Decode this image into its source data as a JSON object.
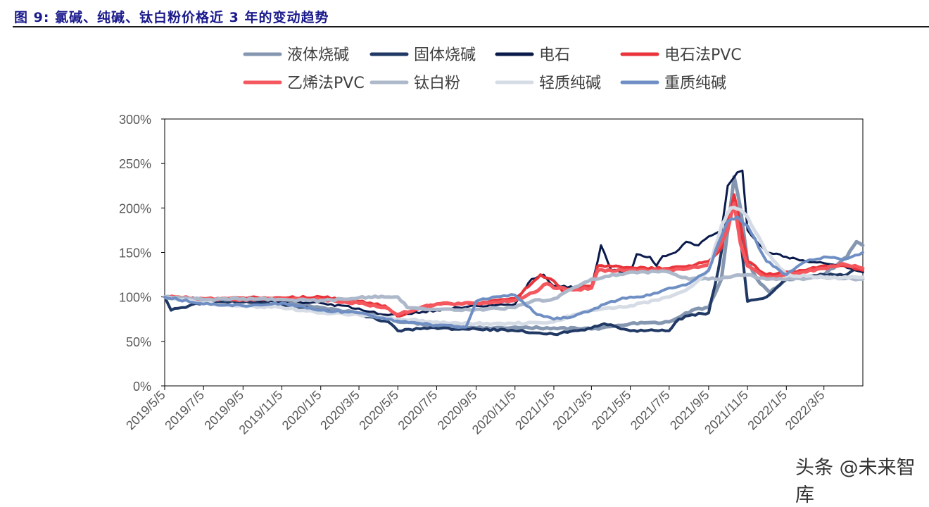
{
  "figure": {
    "title": "图 9: 氯碱、纯碱、钛白粉价格近 3 年的变动趋势",
    "watermark": "头条 @未来智库"
  },
  "chart_data": {
    "type": "line",
    "title": "",
    "xlabel": "",
    "ylabel": "",
    "ylim": [
      0,
      300
    ],
    "y_unit": "%",
    "grid": false,
    "legend_position": "top",
    "yticks": [
      "0%",
      "50%",
      "100%",
      "150%",
      "200%",
      "250%",
      "300%"
    ],
    "x_ticks": [
      "2019/5/5",
      "2019/7/5",
      "2019/9/5",
      "2019/11/5",
      "2020/1/5",
      "2020/3/5",
      "2020/5/5",
      "2020/7/5",
      "2020/9/5",
      "2020/11/5",
      "2021/1/5",
      "2021/3/5",
      "2021/5/5",
      "2021/7/5",
      "2021/9/5",
      "2021/11/5",
      "2022/1/5",
      "2022/3/5"
    ],
    "series": [
      {
        "name": "液体烧碱",
        "color": "#8496b0",
        "width": 5,
        "points": [
          [
            "2019/5/5",
            100
          ],
          [
            "2019/6/1",
            98
          ],
          [
            "2019/7/5",
            95
          ],
          [
            "2019/9/5",
            95
          ],
          [
            "2019/10/20",
            97
          ],
          [
            "2019/11/5",
            96
          ],
          [
            "2020/1/5",
            88
          ],
          [
            "2020/3/5",
            82
          ],
          [
            "2020/4/20",
            78
          ],
          [
            "2020/5/5",
            72
          ],
          [
            "2020/6/10",
            70
          ],
          [
            "2020/7/5",
            68
          ],
          [
            "2020/9/5",
            65
          ],
          [
            "2020/11/5",
            66
          ],
          [
            "2021/1/5",
            65
          ],
          [
            "2021/3/5",
            64
          ],
          [
            "2021/4/20",
            68
          ],
          [
            "2021/5/5",
            70
          ],
          [
            "2021/7/5",
            72
          ],
          [
            "2021/8/10",
            85
          ],
          [
            "2021/9/5",
            88
          ],
          [
            "2021/9/25",
            120
          ],
          [
            "2021/10/5",
            175
          ],
          [
            "2021/10/15",
            235
          ],
          [
            "2021/10/25",
            200
          ],
          [
            "2021/11/5",
            140
          ],
          [
            "2021/11/20",
            120
          ],
          [
            "2021/12/10",
            105
          ],
          [
            "2022/1/5",
            120
          ],
          [
            "2022/3/5",
            125
          ],
          [
            "2022/4/10",
            145
          ],
          [
            "2022/4/25",
            162
          ],
          [
            "2022/5/5",
            158
          ]
        ]
      },
      {
        "name": "固体烧碱",
        "color": "#203864",
        "width": 4,
        "points": [
          [
            "2019/5/5",
            100
          ],
          [
            "2019/5/15",
            85
          ],
          [
            "2019/6/1",
            88
          ],
          [
            "2019/7/5",
            94
          ],
          [
            "2019/9/5",
            94
          ],
          [
            "2019/11/5",
            92
          ],
          [
            "2020/1/5",
            85
          ],
          [
            "2020/3/5",
            80
          ],
          [
            "2020/4/20",
            72
          ],
          [
            "2020/5/5",
            62
          ],
          [
            "2020/6/15",
            65
          ],
          [
            "2020/9/5",
            64
          ],
          [
            "2020/11/5",
            62
          ],
          [
            "2021/1/5",
            58
          ],
          [
            "2021/3/5",
            65
          ],
          [
            "2021/3/25",
            70
          ],
          [
            "2021/4/20",
            64
          ],
          [
            "2021/5/5",
            62
          ],
          [
            "2021/7/5",
            62
          ],
          [
            "2021/7/20",
            75
          ],
          [
            "2021/8/10",
            80
          ],
          [
            "2021/9/5",
            82
          ],
          [
            "2021/9/20",
            130
          ],
          [
            "2021/10/5",
            195
          ],
          [
            "2021/10/20",
            200
          ],
          [
            "2021/11/5",
            95
          ],
          [
            "2021/12/5",
            100
          ],
          [
            "2022/1/5",
            120
          ],
          [
            "2022/3/5",
            125
          ],
          [
            "2022/4/10",
            125
          ],
          [
            "2022/4/25",
            132
          ],
          [
            "2022/5/5",
            128
          ]
        ]
      },
      {
        "name": "电石",
        "color": "#0a1a4a",
        "width": 3,
        "points": [
          [
            "2019/5/5",
            100
          ],
          [
            "2019/7/5",
            98
          ],
          [
            "2019/9/5",
            97
          ],
          [
            "2019/11/5",
            95
          ],
          [
            "2020/1/5",
            93
          ],
          [
            "2020/3/5",
            87
          ],
          [
            "2020/4/15",
            80
          ],
          [
            "2020/5/5",
            80
          ],
          [
            "2020/7/5",
            85
          ],
          [
            "2020/9/5",
            90
          ],
          [
            "2020/11/5",
            92
          ],
          [
            "2020/12/1",
            120
          ],
          [
            "2020/12/20",
            125
          ],
          [
            "2021/1/5",
            112
          ],
          [
            "2021/3/5",
            110
          ],
          [
            "2021/3/20",
            158
          ],
          [
            "2021/4/5",
            130
          ],
          [
            "2021/5/5",
            128
          ],
          [
            "2021/5/15",
            148
          ],
          [
            "2021/6/5",
            145
          ],
          [
            "2021/6/15",
            135
          ],
          [
            "2021/6/25",
            146
          ],
          [
            "2021/7/15",
            150
          ],
          [
            "2021/8/1",
            162
          ],
          [
            "2021/8/20",
            158
          ],
          [
            "2021/9/5",
            168
          ],
          [
            "2021/9/25",
            175
          ],
          [
            "2021/10/5",
            225
          ],
          [
            "2021/10/20",
            240
          ],
          [
            "2021/10/28",
            242
          ],
          [
            "2021/11/5",
            175
          ],
          [
            "2021/12/5",
            150
          ],
          [
            "2022/1/5",
            145
          ],
          [
            "2022/2/5",
            140
          ],
          [
            "2022/3/5",
            138
          ],
          [
            "2022/4/5",
            135
          ],
          [
            "2022/5/5",
            128
          ]
        ]
      },
      {
        "name": "电石法PVC",
        "color": "#e8343a",
        "width": 4,
        "points": [
          [
            "2019/5/5",
            100
          ],
          [
            "2019/7/5",
            98
          ],
          [
            "2019/9/5",
            99
          ],
          [
            "2019/11/5",
            99
          ],
          [
            "2020/1/5",
            100
          ],
          [
            "2020/3/5",
            95
          ],
          [
            "2020/4/15",
            90
          ],
          [
            "2020/5/5",
            78
          ],
          [
            "2020/6/10",
            88
          ],
          [
            "2020/7/5",
            92
          ],
          [
            "2020/9/5",
            93
          ],
          [
            "2020/11/5",
            98
          ],
          [
            "2020/12/1",
            115
          ],
          [
            "2020/12/15",
            125
          ],
          [
            "2021/1/5",
            118
          ],
          [
            "2021/1/20",
            105
          ],
          [
            "2021/2/5",
            110
          ],
          [
            "2021/3/5",
            112
          ],
          [
            "2021/3/15",
            135
          ],
          [
            "2021/5/5",
            133
          ],
          [
            "2021/7/5",
            132
          ],
          [
            "2021/8/5",
            135
          ],
          [
            "2021/9/5",
            140
          ],
          [
            "2021/9/25",
            155
          ],
          [
            "2021/10/5",
            185
          ],
          [
            "2021/10/15",
            215
          ],
          [
            "2021/10/28",
            170
          ],
          [
            "2021/11/5",
            140
          ],
          [
            "2021/12/5",
            125
          ],
          [
            "2022/1/5",
            128
          ],
          [
            "2022/2/5",
            130
          ],
          [
            "2022/3/5",
            135
          ],
          [
            "2022/4/5",
            135
          ],
          [
            "2022/5/5",
            130
          ]
        ]
      },
      {
        "name": "乙烯法PVC",
        "color": "#f4575d",
        "width": 5,
        "points": [
          [
            "2019/5/5",
            100
          ],
          [
            "2019/7/5",
            98
          ],
          [
            "2019/9/5",
            97
          ],
          [
            "2019/11/5",
            98
          ],
          [
            "2020/1/5",
            97
          ],
          [
            "2020/3/5",
            93
          ],
          [
            "2020/4/15",
            88
          ],
          [
            "2020/5/5",
            80
          ],
          [
            "2020/6/10",
            88
          ],
          [
            "2020/7/5",
            92
          ],
          [
            "2020/9/5",
            93
          ],
          [
            "2020/11/5",
            96
          ],
          [
            "2020/12/5",
            105
          ],
          [
            "2020/12/25",
            115
          ],
          [
            "2021/1/5",
            110
          ],
          [
            "2021/2/5",
            108
          ],
          [
            "2021/3/5",
            110
          ],
          [
            "2021/3/15",
            130
          ],
          [
            "2021/5/5",
            130
          ],
          [
            "2021/7/5",
            130
          ],
          [
            "2021/9/5",
            136
          ],
          [
            "2021/10/5",
            175
          ],
          [
            "2021/10/15",
            205
          ],
          [
            "2021/10/25",
            160
          ],
          [
            "2021/11/5",
            135
          ],
          [
            "2021/12/5",
            122
          ],
          [
            "2022/1/5",
            125
          ],
          [
            "2022/3/5",
            132
          ],
          [
            "2022/4/5",
            137
          ],
          [
            "2022/5/5",
            132
          ]
        ]
      },
      {
        "name": "钛白粉",
        "color": "#adb9ca",
        "width": 5,
        "points": [
          [
            "2019/5/5",
            100
          ],
          [
            "2019/7/5",
            97
          ],
          [
            "2019/9/5",
            98
          ],
          [
            "2019/11/5",
            97
          ],
          [
            "2020/1/5",
            96
          ],
          [
            "2020/3/5",
            99
          ],
          [
            "2020/3/20",
            100
          ],
          [
            "2020/4/20",
            100
          ],
          [
            "2020/5/5",
            100
          ],
          [
            "2020/5/20",
            88
          ],
          [
            "2020/7/5",
            86
          ],
          [
            "2020/9/5",
            86
          ],
          [
            "2020/11/5",
            88
          ],
          [
            "2020/12/1",
            95
          ],
          [
            "2021/1/5",
            98
          ],
          [
            "2021/3/5",
            120
          ],
          [
            "2021/5/5",
            128
          ],
          [
            "2021/7/5",
            128
          ],
          [
            "2021/8/5",
            120
          ],
          [
            "2021/9/5",
            120
          ],
          [
            "2021/10/5",
            122
          ],
          [
            "2021/11/5",
            125
          ],
          [
            "2021/12/5",
            120
          ],
          [
            "2022/1/5",
            120
          ],
          [
            "2022/3/5",
            122
          ],
          [
            "2022/5/5",
            120
          ]
        ]
      },
      {
        "name": "轻质纯碱",
        "color": "#d6dce5",
        "width": 5,
        "points": [
          [
            "2019/5/5",
            100
          ],
          [
            "2019/7/5",
            93
          ],
          [
            "2019/9/5",
            90
          ],
          [
            "2019/11/5",
            88
          ],
          [
            "2020/1/5",
            82
          ],
          [
            "2020/3/5",
            80
          ],
          [
            "2020/5/5",
            75
          ],
          [
            "2020/7/5",
            72
          ],
          [
            "2020/9/5",
            70
          ],
          [
            "2020/11/5",
            70
          ],
          [
            "2021/1/5",
            72
          ],
          [
            "2021/2/5",
            80
          ],
          [
            "2021/3/5",
            85
          ],
          [
            "2021/5/5",
            90
          ],
          [
            "2021/7/5",
            100
          ],
          [
            "2021/8/5",
            110
          ],
          [
            "2021/9/5",
            130
          ],
          [
            "2021/9/25",
            180
          ],
          [
            "2021/10/10",
            200
          ],
          [
            "2021/10/25",
            198
          ],
          [
            "2021/11/5",
            190
          ],
          [
            "2021/12/5",
            150
          ],
          [
            "2022/1/5",
            125
          ],
          [
            "2022/3/5",
            122
          ],
          [
            "2022/5/5",
            122
          ]
        ]
      },
      {
        "name": "重质纯碱",
        "color": "#6f8fc4",
        "width": 4,
        "points": [
          [
            "2019/5/5",
            100
          ],
          [
            "2019/7/5",
            92
          ],
          [
            "2019/9/5",
            90
          ],
          [
            "2019/11/5",
            93
          ],
          [
            "2020/1/5",
            85
          ],
          [
            "2020/3/5",
            82
          ],
          [
            "2020/5/5",
            73
          ],
          [
            "2020/7/5",
            68
          ],
          [
            "2020/8/20",
            66
          ],
          [
            "2020/9/5",
            95
          ],
          [
            "2020/10/1",
            100
          ],
          [
            "2020/11/5",
            102
          ],
          [
            "2020/12/10",
            80
          ],
          [
            "2021/1/5",
            75
          ],
          [
            "2021/2/5",
            78
          ],
          [
            "2021/3/5",
            85
          ],
          [
            "2021/4/5",
            95
          ],
          [
            "2021/5/5",
            100
          ],
          [
            "2021/6/5",
            102
          ],
          [
            "2021/7/5",
            110
          ],
          [
            "2021/8/5",
            115
          ],
          [
            "2021/9/5",
            130
          ],
          [
            "2021/9/20",
            160
          ],
          [
            "2021/10/5",
            185
          ],
          [
            "2021/10/20",
            190
          ],
          [
            "2021/11/5",
            180
          ],
          [
            "2021/12/5",
            140
          ],
          [
            "2022/1/5",
            125
          ],
          [
            "2022/2/5",
            140
          ],
          [
            "2022/3/5",
            145
          ],
          [
            "2022/4/5",
            142
          ],
          [
            "2022/5/5",
            150
          ]
        ]
      }
    ]
  }
}
